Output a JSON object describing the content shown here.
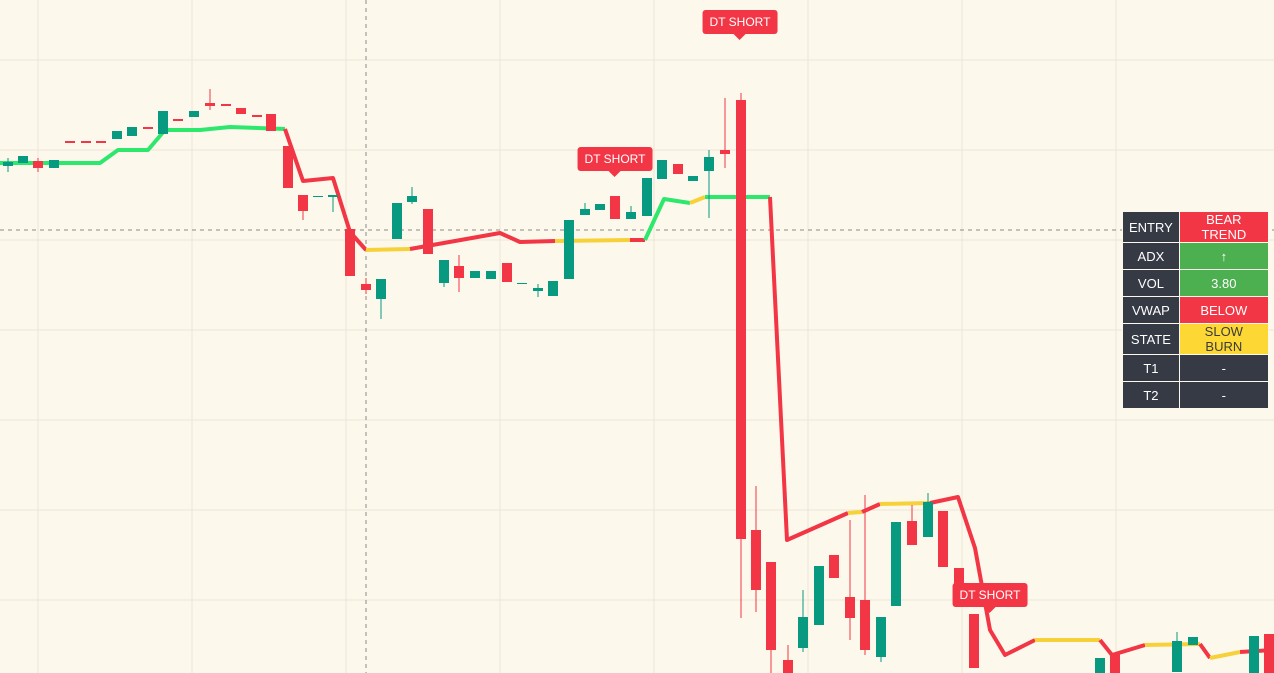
{
  "signals": [
    {
      "label": "DT SHORT"
    },
    {
      "label": "DT SHORT"
    },
    {
      "label": "DT SHORT"
    }
  ],
  "table": {
    "rows": [
      [
        "ENTRY",
        "BEAR TREND"
      ],
      [
        "ADX",
        "↑"
      ],
      [
        "VOL",
        "3.80"
      ],
      [
        "VWAP",
        "BELOW"
      ],
      [
        "STATE",
        "SLOW BURN"
      ],
      [
        "T1",
        "-"
      ],
      [
        "T2",
        "-"
      ]
    ]
  }
}
